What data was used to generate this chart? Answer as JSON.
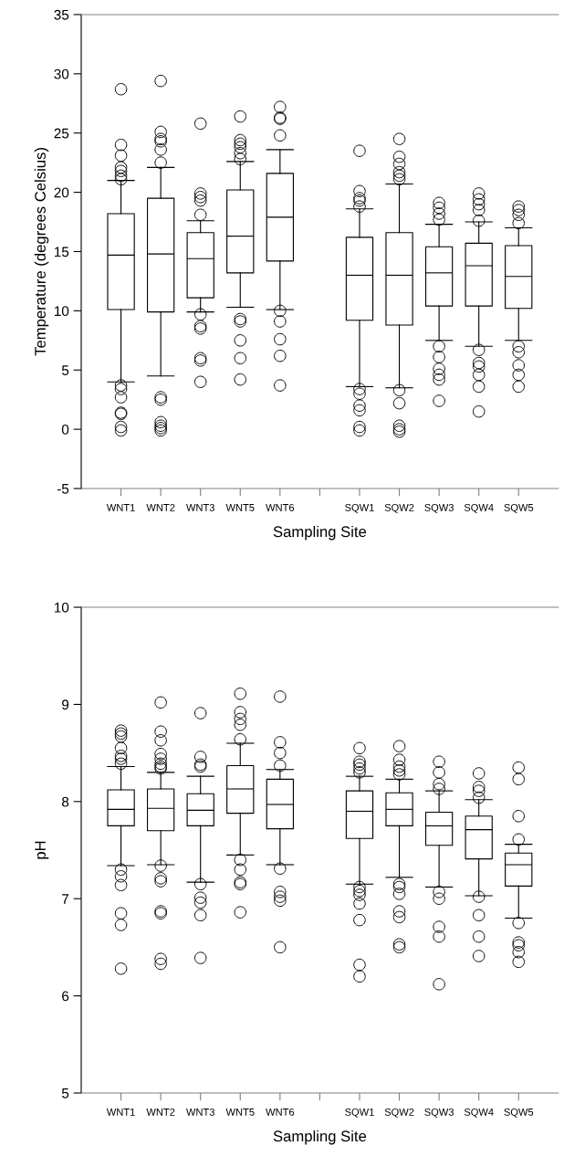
{
  "chart_data": [
    {
      "type": "box",
      "xlabel": "Sampling Site",
      "ylabel": "Temperature (degrees Celsius)",
      "categories": [
        "WNT1",
        "WNT2",
        "WNT3",
        "WNT5",
        "WNT6",
        null,
        "SQW1",
        "SQW2",
        "SQW3",
        "SQW4",
        "SQW5"
      ],
      "ylim": [
        -5,
        35
      ],
      "yticks": [
        -5,
        0,
        5,
        10,
        15,
        20,
        25,
        30,
        35
      ],
      "grid": false,
      "marker": "circle",
      "boxes": [
        {
          "low": 4.0,
          "q1": 10.1,
          "median": 14.7,
          "q3": 18.2,
          "high": 21.0,
          "outliers": [
            28.7,
            24.0,
            23.1,
            22.1,
            21.8,
            21.4,
            21.1,
            3.7,
            3.4,
            2.7,
            1.4,
            1.3,
            0.2,
            -0.1
          ]
        },
        {
          "low": 4.5,
          "q1": 9.9,
          "median": 14.8,
          "q3": 19.5,
          "high": 22.1,
          "outliers": [
            29.4,
            25.1,
            24.5,
            24.3,
            23.6,
            22.5,
            2.7,
            2.5,
            0.6,
            0.3,
            0.1,
            -0.1
          ]
        },
        {
          "low": 9.9,
          "q1": 11.1,
          "median": 14.4,
          "q3": 16.6,
          "high": 17.6,
          "outliers": [
            25.8,
            19.9,
            19.6,
            19.3,
            18.1,
            9.7,
            8.7,
            8.5,
            6.0,
            5.8,
            4.0
          ]
        },
        {
          "low": 10.3,
          "q1": 13.2,
          "median": 16.3,
          "q3": 20.2,
          "high": 22.6,
          "outliers": [
            26.4,
            24.4,
            24.1,
            23.8,
            23.3,
            22.8,
            9.3,
            9.1,
            7.5,
            6.0,
            4.2
          ]
        },
        {
          "low": 10.1,
          "q1": 14.2,
          "median": 17.9,
          "q3": 21.6,
          "high": 23.6,
          "outliers": [
            27.2,
            26.3,
            26.2,
            24.8,
            10.0,
            9.1,
            7.6,
            6.2,
            3.7
          ]
        },
        null,
        {
          "low": 3.6,
          "q1": 9.2,
          "median": 13.0,
          "q3": 16.2,
          "high": 18.6,
          "outliers": [
            23.5,
            20.1,
            19.5,
            19.3,
            18.8,
            3.4,
            3.0,
            2.0,
            1.6,
            0.2,
            -0.1
          ]
        },
        {
          "low": 3.5,
          "q1": 8.8,
          "median": 13.0,
          "q3": 16.6,
          "high": 20.7,
          "outliers": [
            24.5,
            23.0,
            22.4,
            21.7,
            21.4,
            21.1,
            3.3,
            2.2,
            0.3,
            0.0,
            -0.2
          ]
        },
        {
          "low": 7.5,
          "q1": 10.4,
          "median": 13.2,
          "q3": 15.4,
          "high": 17.3,
          "outliers": [
            19.1,
            18.7,
            18.2,
            17.7,
            7.0,
            6.1,
            5.1,
            4.6,
            4.2,
            2.4
          ]
        },
        {
          "low": 7.0,
          "q1": 10.4,
          "median": 13.8,
          "q3": 15.7,
          "high": 17.5,
          "outliers": [
            19.9,
            19.4,
            19.0,
            18.5,
            17.6,
            6.7,
            5.6,
            5.3,
            4.6,
            3.6,
            1.5
          ]
        },
        {
          "low": 7.5,
          "q1": 10.2,
          "median": 12.9,
          "q3": 15.5,
          "high": 17.0,
          "outliers": [
            18.8,
            18.5,
            18.1,
            17.4,
            7.0,
            6.5,
            5.4,
            4.6,
            3.6
          ]
        }
      ]
    },
    {
      "type": "box",
      "xlabel": "Sampling Site",
      "ylabel": "pH",
      "categories": [
        "WNT1",
        "WNT2",
        "WNT3",
        "WNT5",
        "WNT6",
        null,
        "SQW1",
        "SQW2",
        "SQW3",
        "SQW4",
        "SQW5"
      ],
      "ylim": [
        5,
        10
      ],
      "yticks": [
        5,
        6,
        7,
        8,
        9,
        10
      ],
      "grid": false,
      "marker": "circle",
      "boxes": [
        {
          "low": 7.34,
          "q1": 7.75,
          "median": 7.92,
          "q3": 8.12,
          "high": 8.36,
          "outliers": [
            8.73,
            8.7,
            8.67,
            8.55,
            8.47,
            8.44,
            8.39,
            7.3,
            7.23,
            7.14,
            6.85,
            6.73,
            6.28
          ]
        },
        {
          "low": 7.35,
          "q1": 7.7,
          "median": 7.93,
          "q3": 8.13,
          "high": 8.3,
          "outliers": [
            9.02,
            8.72,
            8.63,
            8.49,
            8.44,
            8.39,
            8.36,
            8.34,
            7.34,
            7.21,
            7.18,
            6.87,
            6.85,
            6.38,
            6.33
          ]
        },
        {
          "low": 7.17,
          "q1": 7.75,
          "median": 7.91,
          "q3": 8.08,
          "high": 8.26,
          "outliers": [
            8.91,
            8.46,
            8.38,
            8.36,
            7.15,
            7.01,
            6.96,
            6.83,
            6.39
          ]
        },
        {
          "low": 7.45,
          "q1": 7.88,
          "median": 8.13,
          "q3": 8.37,
          "high": 8.6,
          "outliers": [
            9.11,
            8.92,
            8.85,
            8.79,
            8.64,
            7.4,
            7.3,
            7.17,
            7.15,
            6.86
          ]
        },
        {
          "low": 7.35,
          "q1": 7.72,
          "median": 7.97,
          "q3": 8.23,
          "high": 8.33,
          "outliers": [
            9.08,
            8.61,
            8.5,
            8.37,
            7.31,
            7.07,
            7.02,
            6.98,
            6.5
          ]
        },
        null,
        {
          "low": 7.15,
          "q1": 7.62,
          "median": 7.9,
          "q3": 8.11,
          "high": 8.26,
          "outliers": [
            8.55,
            8.41,
            8.38,
            8.34,
            8.3,
            7.12,
            7.08,
            7.04,
            6.95,
            6.78,
            6.32,
            6.2
          ]
        },
        {
          "low": 7.22,
          "q1": 7.75,
          "median": 7.92,
          "q3": 8.09,
          "high": 8.23,
          "outliers": [
            8.57,
            8.43,
            8.36,
            8.32,
            8.28,
            7.15,
            7.12,
            7.05,
            6.87,
            6.81,
            6.53,
            6.5
          ]
        },
        {
          "low": 7.12,
          "q1": 7.55,
          "median": 7.75,
          "q3": 7.89,
          "high": 8.11,
          "outliers": [
            8.41,
            8.3,
            8.18,
            8.13,
            7.07,
            7.0,
            6.71,
            6.61,
            6.12
          ]
        },
        {
          "low": 7.03,
          "q1": 7.41,
          "median": 7.71,
          "q3": 7.85,
          "high": 8.02,
          "outliers": [
            8.29,
            8.15,
            8.11,
            8.04,
            7.02,
            6.83,
            6.61,
            6.41
          ]
        },
        {
          "low": 6.8,
          "q1": 7.13,
          "median": 7.35,
          "q3": 7.47,
          "high": 7.56,
          "outliers": [
            8.35,
            8.23,
            7.85,
            7.61,
            6.75,
            6.55,
            6.52,
            6.45,
            6.35
          ]
        }
      ]
    }
  ]
}
